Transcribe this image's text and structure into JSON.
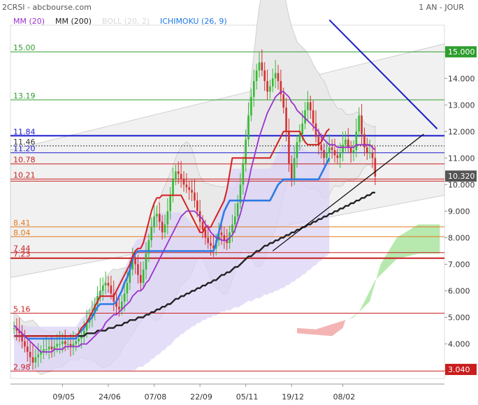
{
  "header": {
    "symbol": "2CRSI - abcbourse.com",
    "period": "1 AN - JOUR"
  },
  "legend": [
    {
      "label": "MM (20)",
      "color": "#9a32cd"
    },
    {
      "label": "MM (200)",
      "color": "#222222"
    },
    {
      "label": "BOLL (20, 2)",
      "color": "#d8d8d8"
    },
    {
      "label": "ICHIMOKU (26, 9)",
      "color": "#1e78e6"
    }
  ],
  "colors": {
    "up": "#35b935",
    "down": "#d23232",
    "mm20": "#9a32cd",
    "mm200": "#222222",
    "kijun": "#d42020",
    "tenkan_blue": "#2c7be5",
    "trend_blue": "#1c1cc8",
    "trend_black": "#000000",
    "boll_fill": "#e9e9e9",
    "cloud_purple": "#dcd3f5",
    "cloud_green": "#b7e9ae",
    "cloud_red": "#f4b4b4",
    "level_green": "#2e9e2e",
    "level_blue": "#1a1acd",
    "level_red": "#c81e1e",
    "level_orange": "#e07a1e"
  },
  "chart_data": {
    "type": "candlestick",
    "title": "2CRSI - abcbourse.com",
    "period": "1 AN - JOUR",
    "x_tick_labels": [
      "09/05",
      "24/06",
      "07/08",
      "22/09",
      "05/11",
      "19/12",
      "08/02"
    ],
    "y_tick_labels": [
      "3.000",
      "4.000",
      "5.000",
      "6.000",
      "7.000",
      "8.000",
      "9.000",
      "10.000",
      "11.000",
      "12.000",
      "13.000",
      "14.000",
      "15.000"
    ],
    "ylim": [
      2.7,
      15.9
    ],
    "last_price": "10.320",
    "price_badges": [
      {
        "label": "15.000",
        "value": 15.0,
        "color": "#2e9e2e"
      },
      {
        "label": "10.320",
        "value": 10.32,
        "color": "#555555"
      },
      {
        "label": "3.040",
        "value": 3.04,
        "color": "#c81e1e"
      }
    ],
    "levels": [
      {
        "label": "15.00",
        "value": 15.0,
        "color": "#2e9e2e"
      },
      {
        "label": "13.19",
        "value": 13.19,
        "color": "#2e9e2e"
      },
      {
        "label": "11.84",
        "value": 11.84,
        "color": "#1a1acd",
        "width": 2
      },
      {
        "label": "11.46",
        "value": 11.46,
        "color": "#333333",
        "dash": true
      },
      {
        "label": "11.20",
        "value": 11.2,
        "color": "#1a1acd"
      },
      {
        "label": "10.78",
        "value": 10.78,
        "color": "#c81e1e"
      },
      {
        "label": "10.21",
        "value": 10.21,
        "color": "#c81e1e",
        "double": true
      },
      {
        "label": "8.41",
        "value": 8.41,
        "color": "#e07a1e"
      },
      {
        "label": "8.04",
        "value": 8.04,
        "color": "#e07a1e"
      },
      {
        "label": "7.44",
        "value": 7.44,
        "color": "#c81e1e"
      },
      {
        "label": "7.23",
        "value": 7.23,
        "color": "#c81e1e",
        "width": 2
      },
      {
        "label": "5.16",
        "value": 5.16,
        "color": "#c81e1e"
      },
      {
        "label": "2.98",
        "value": 2.98,
        "color": "#c81e1e"
      }
    ],
    "closes": [
      4.6,
      4.5,
      4.4,
      4.1,
      3.9,
      3.7,
      3.5,
      3.3,
      3.5,
      3.6,
      3.7,
      3.8,
      3.8,
      3.9,
      3.8,
      3.9,
      4.0,
      4.0,
      4.1,
      4.0,
      4.0,
      3.9,
      4.0,
      4.1,
      4.2,
      4.3,
      4.5,
      4.8,
      5.0,
      5.2,
      5.5,
      5.8,
      6.0,
      6.2,
      6.3,
      6.2,
      5.9,
      5.6,
      5.4,
      5.3,
      5.6,
      5.9,
      6.3,
      6.8,
      7.2,
      7.0,
      6.6,
      6.3,
      6.8,
      7.4,
      7.9,
      8.4,
      8.8,
      8.9,
      8.6,
      8.2,
      8.5,
      9.0,
      9.6,
      10.2,
      10.5,
      10.4,
      10.2,
      10.0,
      9.9,
      9.8,
      9.7,
      9.4,
      9.0,
      8.6,
      8.3,
      8.0,
      7.8,
      7.7,
      7.6,
      7.9,
      8.2,
      8.1,
      7.9,
      7.8,
      8.2,
      8.5,
      8.8,
      9.3,
      10.0,
      10.8,
      11.7,
      12.6,
      13.3,
      13.9,
      14.3,
      14.6,
      14.3,
      13.9,
      13.5,
      13.7,
      14.0,
      14.2,
      13.9,
      13.4,
      12.9,
      12.0,
      10.8,
      10.2,
      11.0,
      11.6,
      11.9,
      12.3,
      12.8,
      13.1,
      12.8,
      12.3,
      11.8,
      11.5,
      11.3,
      11.0,
      11.2,
      11.4,
      11.3,
      11.1,
      11.0,
      11.2,
      11.5,
      11.7,
      11.4,
      11.2,
      11.3,
      12.0,
      12.6,
      11.9,
      11.4,
      11.2,
      11.2,
      11.0,
      10.3
    ],
    "x_future_periods": 26,
    "series": [
      {
        "name": "MM (20)",
        "values": [
          4.7,
          4.6,
          4.5,
          4.4,
          4.3,
          4.2,
          4.1,
          4.0,
          3.9,
          3.8,
          3.7,
          3.7,
          3.7,
          3.7,
          3.7,
          3.8,
          3.8,
          3.8,
          3.8,
          3.9,
          3.9,
          3.9,
          3.9,
          3.9,
          3.9,
          4.0,
          4.0,
          4.0,
          4.1,
          4.2,
          4.3,
          4.4,
          4.5,
          4.6,
          4.8,
          4.9,
          5.0,
          5.1,
          5.1,
          5.2,
          5.3,
          5.4,
          5.5,
          5.6,
          5.8,
          5.9,
          6.0,
          6.0,
          6.1,
          6.3,
          6.4,
          6.6,
          6.8,
          7.0,
          7.2,
          7.4,
          7.6,
          7.8,
          8.0,
          8.2,
          8.4,
          8.6,
          8.8,
          8.9,
          9.0,
          9.0,
          9.0,
          9.0,
          8.9,
          8.8,
          8.7,
          8.5,
          8.4,
          8.2,
          8.1,
          8.0,
          8.0,
          7.9,
          7.9,
          7.9,
          8.0,
          8.1,
          8.3,
          8.6,
          8.9,
          9.3,
          9.7,
          10.1,
          10.6,
          11.0,
          11.4,
          11.8,
          12.1,
          12.4,
          12.7,
          12.9,
          13.1,
          13.3,
          13.4,
          13.5,
          13.5,
          13.4,
          13.3,
          13.1,
          13.0,
          12.8,
          12.7,
          12.6,
          12.5,
          12.4,
          12.3,
          12.2,
          12.1,
          12.0,
          11.8,
          11.7,
          11.6,
          11.5,
          11.5,
          11.5,
          11.4,
          11.4,
          11.4,
          11.4,
          11.4,
          11.4,
          11.4,
          11.5,
          11.5,
          11.5,
          11.5,
          11.5,
          11.5,
          11.4,
          11.3
        ]
      },
      {
        "name": "MM (200)",
        "values": [
          4.3,
          4.3,
          4.3,
          4.3,
          4.3,
          4.3,
          4.3,
          4.3,
          4.3,
          4.3,
          4.3,
          4.3,
          4.3,
          4.3,
          4.3,
          4.3,
          4.3,
          4.3,
          4.3,
          4.3,
          4.3,
          4.3,
          4.3,
          4.3,
          4.3,
          4.3,
          4.3,
          4.4,
          4.4,
          4.4,
          4.4,
          4.5,
          4.5,
          4.5,
          4.5,
          4.6,
          4.6,
          4.6,
          4.7,
          4.7,
          4.7,
          4.8,
          4.8,
          4.9,
          4.9,
          4.9,
          5.0,
          5.0,
          5.0,
          5.1,
          5.1,
          5.2,
          5.2,
          5.3,
          5.3,
          5.4,
          5.4,
          5.5,
          5.5,
          5.6,
          5.7,
          5.7,
          5.8,
          5.8,
          5.9,
          5.9,
          6.0,
          6.0,
          6.1,
          6.1,
          6.2,
          6.2,
          6.3,
          6.3,
          6.4,
          6.4,
          6.5,
          6.6,
          6.6,
          6.7,
          6.7,
          6.8,
          6.9,
          6.9,
          7.0,
          7.1,
          7.2,
          7.3,
          7.3,
          7.4,
          7.5,
          7.5,
          7.6,
          7.7,
          7.7,
          7.8,
          7.8,
          7.9,
          7.9,
          8.0,
          8.0,
          8.1,
          8.1,
          8.2,
          8.2,
          8.3,
          8.3,
          8.4,
          8.4,
          8.5,
          8.5,
          8.6,
          8.6,
          8.7,
          8.7,
          8.8,
          8.8,
          8.9,
          8.9,
          9.0,
          9.0,
          9.1,
          9.1,
          9.2,
          9.2,
          9.3,
          9.3,
          9.4,
          9.4,
          9.5,
          9.5,
          9.6,
          9.6,
          9.7,
          9.7
        ]
      },
      {
        "name": "ICHIMOKU (26, 9)",
        "values": [
          4.3,
          4.3,
          4.3,
          4.3,
          4.3,
          4.2,
          4.2,
          4.2,
          4.2,
          4.2,
          4.2,
          4.2,
          4.2,
          4.2,
          4.2,
          4.2,
          4.2,
          4.2,
          4.2,
          4.2,
          4.2,
          4.2,
          4.2,
          4.2,
          4.4,
          4.5,
          4.6,
          4.8,
          4.9,
          5.0,
          5.2,
          5.4,
          5.5,
          5.5,
          5.5,
          5.5,
          5.5,
          5.5,
          5.6,
          5.8,
          6.0,
          6.3,
          6.5,
          6.8,
          7.2,
          7.4,
          7.5,
          7.5,
          7.5,
          7.5,
          7.5,
          7.5,
          7.5,
          7.5,
          7.5,
          7.5,
          7.5,
          7.5,
          7.5,
          7.5,
          7.5,
          7.5,
          7.5,
          7.5,
          7.5,
          7.5,
          7.5,
          7.5,
          7.5,
          7.5,
          7.5,
          7.5,
          7.5,
          7.5,
          7.5,
          7.8,
          8.2,
          8.6,
          9.0,
          9.2,
          9.4,
          9.4,
          9.4,
          9.4,
          9.4,
          9.4,
          9.4,
          9.4,
          9.4,
          9.4,
          9.4,
          9.4,
          9.4,
          9.4,
          9.4,
          9.4,
          9.6,
          9.8,
          10.0,
          10.1,
          10.2,
          10.2,
          10.2,
          10.2,
          10.2,
          10.2,
          10.2,
          10.2,
          10.2,
          10.2,
          10.2,
          10.2,
          10.2,
          10.2,
          10.4,
          10.6,
          10.8,
          11.0
        ]
      },
      {
        "name": "Kijun",
        "values": [
          4.3,
          4.3,
          4.3,
          4.3,
          4.3,
          4.3,
          4.3,
          4.3,
          4.3,
          4.3,
          4.3,
          4.3,
          4.3,
          4.3,
          4.3,
          4.3,
          4.3,
          4.3,
          4.3,
          4.3,
          4.3,
          4.3,
          4.3,
          4.3,
          4.4,
          4.6,
          4.7,
          4.8,
          5.0,
          5.2,
          5.4,
          5.6,
          5.8,
          5.8,
          5.8,
          5.8,
          5.8,
          5.8,
          6.0,
          6.2,
          6.4,
          6.6,
          6.8,
          7.0,
          7.3,
          7.5,
          7.6,
          7.6,
          7.8,
          8.2,
          8.6,
          9.0,
          9.3,
          9.5,
          9.5,
          9.6,
          9.6,
          9.6,
          9.6,
          9.6,
          9.6,
          9.6,
          9.6,
          9.4,
          9.2,
          9.0,
          8.8,
          8.6,
          8.4,
          8.2,
          8.2,
          8.4,
          8.4,
          8.4,
          8.6,
          8.8,
          9.0,
          9.2,
          9.4,
          9.8,
          10.4,
          11.0,
          11.0,
          11.0,
          11.0,
          11.0,
          11.0,
          11.0,
          11.0,
          11.0,
          11.0,
          11.0,
          11.0,
          11.0,
          11.0,
          11.0,
          11.2,
          11.4,
          11.6,
          11.8,
          12.0,
          12.0,
          12.0,
          12.0,
          12.0,
          12.0,
          12.0,
          11.8,
          11.6,
          11.5,
          11.5,
          11.5,
          11.5,
          11.5,
          11.6,
          11.8,
          12.0,
          12.1
        ]
      }
    ],
    "annotations": [
      {
        "type": "trendline",
        "color": "#1c1cc8",
        "from": [
          117,
          16.2
        ],
        "to": [
          157,
          12.1
        ]
      },
      {
        "type": "trendline",
        "color": "#000000",
        "from": [
          96,
          7.5
        ],
        "to": [
          152,
          11.9
        ]
      }
    ]
  }
}
